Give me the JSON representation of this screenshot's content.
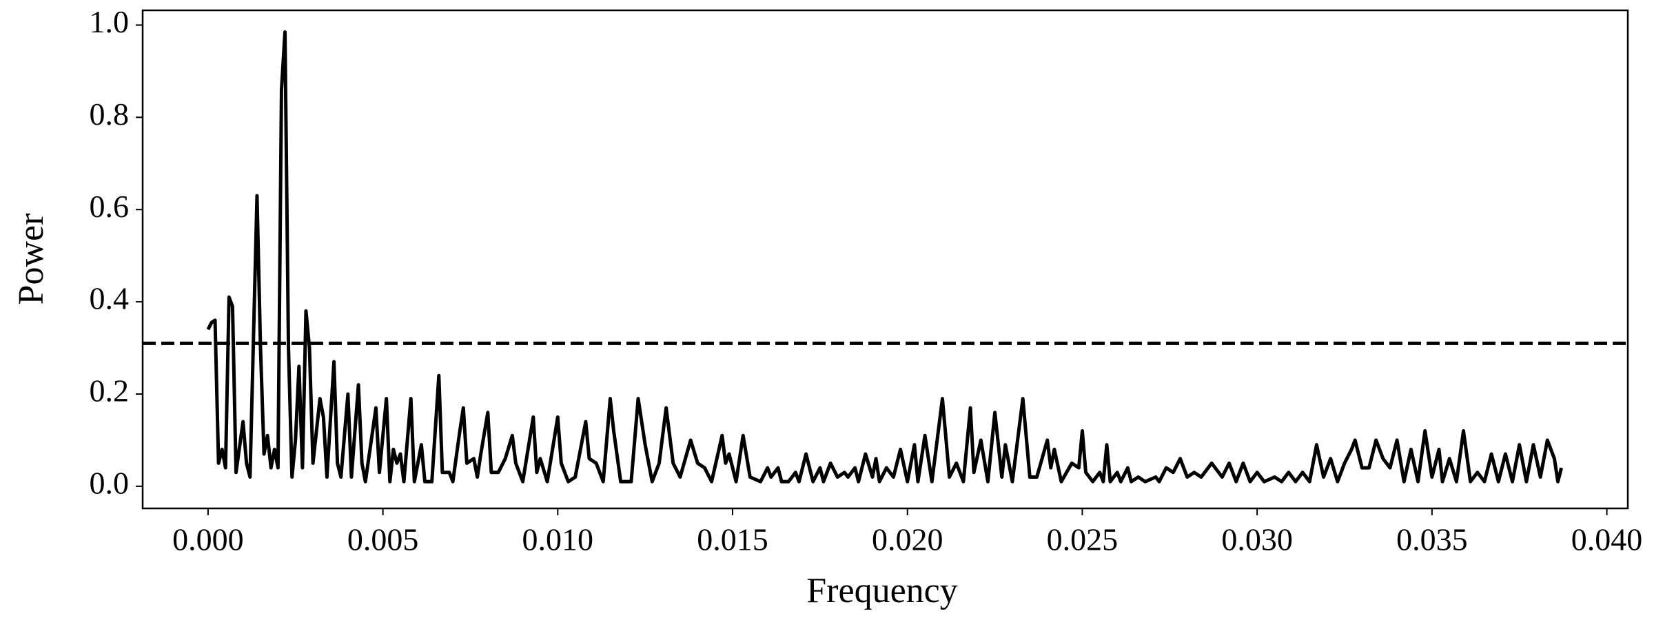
{
  "chart_data": {
    "type": "line",
    "xlabel": "Frequency",
    "ylabel": "Power",
    "x": [
      0,
      0.0001,
      0.0002,
      0.0003,
      0.0004,
      0.0005,
      0.0006,
      0.0007,
      0.0008,
      0.001,
      0.0011,
      0.0012,
      0.0014,
      0.0015,
      0.0016,
      0.0017,
      0.0018,
      0.0019,
      0.002,
      0.0021,
      0.0022,
      0.0023,
      0.0024,
      0.0025,
      0.0026,
      0.0027,
      0.0028,
      0.0029,
      0.003,
      0.0032,
      0.0033,
      0.0034,
      0.0036,
      0.0037,
      0.0038,
      0.004,
      0.0041,
      0.0043,
      0.0044,
      0.0045,
      0.0048,
      0.0049,
      0.0051,
      0.0052,
      0.0053,
      0.0054,
      0.0055,
      0.0056,
      0.0058,
      0.0059,
      0.0061,
      0.0062,
      0.0064,
      0.0066,
      0.0067,
      0.0069,
      0.007,
      0.0072,
      0.0073,
      0.0074,
      0.0076,
      0.0077,
      0.0078,
      0.008,
      0.0081,
      0.0083,
      0.0085,
      0.0087,
      0.0088,
      0.009,
      0.0093,
      0.0094,
      0.0095,
      0.0097,
      0.01,
      0.0101,
      0.0103,
      0.0105,
      0.0108,
      0.0109,
      0.0111,
      0.0113,
      0.0115,
      0.0116,
      0.0118,
      0.0121,
      0.0123,
      0.0125,
      0.0127,
      0.0129,
      0.0131,
      0.0133,
      0.0135,
      0.0138,
      0.014,
      0.0142,
      0.0144,
      0.0147,
      0.0148,
      0.0149,
      0.0151,
      0.0153,
      0.0155,
      0.0158,
      0.016,
      0.0161,
      0.0163,
      0.0164,
      0.0166,
      0.0168,
      0.0169,
      0.0171,
      0.0173,
      0.0175,
      0.0176,
      0.0178,
      0.018,
      0.0182,
      0.0183,
      0.0185,
      0.0186,
      0.0188,
      0.019,
      0.0191,
      0.0192,
      0.0194,
      0.0196,
      0.0198,
      0.02,
      0.0202,
      0.0203,
      0.0205,
      0.0207,
      0.021,
      0.0212,
      0.0214,
      0.0216,
      0.0218,
      0.0219,
      0.0221,
      0.0223,
      0.0225,
      0.0227,
      0.0228,
      0.023,
      0.0233,
      0.0235,
      0.0237,
      0.024,
      0.0241,
      0.0242,
      0.0244,
      0.0247,
      0.0249,
      0.025,
      0.0251,
      0.0253,
      0.0255,
      0.0256,
      0.0257,
      0.0258,
      0.026,
      0.0261,
      0.0263,
      0.0264,
      0.0266,
      0.0268,
      0.0271,
      0.0272,
      0.0274,
      0.0276,
      0.0278,
      0.028,
      0.0282,
      0.0284,
      0.0287,
      0.029,
      0.0292,
      0.0294,
      0.0296,
      0.0298,
      0.03,
      0.0302,
      0.0305,
      0.0307,
      0.0309,
      0.0311,
      0.0313,
      0.0315,
      0.0317,
      0.0319,
      0.0321,
      0.0323,
      0.0325,
      0.0327,
      0.0328,
      0.033,
      0.0332,
      0.0334,
      0.0336,
      0.0338,
      0.034,
      0.0342,
      0.0344,
      0.0346,
      0.0348,
      0.035,
      0.0352,
      0.0353,
      0.0355,
      0.0357,
      0.0359,
      0.0361,
      0.0363,
      0.0365,
      0.0367,
      0.0369,
      0.0371,
      0.0373,
      0.0375,
      0.0377,
      0.0379,
      0.0381,
      0.0383,
      0.0385,
      0.0386,
      0.0387
    ],
    "values": [
      0.34,
      0.355,
      0.36,
      0.05,
      0.08,
      0.04,
      0.41,
      0.39,
      0.03,
      0.14,
      0.05,
      0.02,
      0.63,
      0.3,
      0.07,
      0.11,
      0.04,
      0.08,
      0.04,
      0.86,
      0.985,
      0.3,
      0.02,
      0.1,
      0.26,
      0.04,
      0.38,
      0.3,
      0.05,
      0.19,
      0.15,
      0.02,
      0.27,
      0.05,
      0.02,
      0.2,
      0.02,
      0.22,
      0.05,
      0.01,
      0.17,
      0.03,
      0.19,
      0.01,
      0.08,
      0.05,
      0.07,
      0.01,
      0.19,
      0.01,
      0.09,
      0.01,
      0.01,
      0.24,
      0.03,
      0.03,
      0.01,
      0.12,
      0.17,
      0.05,
      0.06,
      0.02,
      0.07,
      0.16,
      0.03,
      0.03,
      0.06,
      0.11,
      0.05,
      0.01,
      0.15,
      0.03,
      0.06,
      0.01,
      0.15,
      0.05,
      0.01,
      0.02,
      0.14,
      0.06,
      0.05,
      0.01,
      0.19,
      0.12,
      0.01,
      0.01,
      0.19,
      0.09,
      0.01,
      0.05,
      0.17,
      0.05,
      0.02,
      0.1,
      0.05,
      0.04,
      0.01,
      0.11,
      0.05,
      0.07,
      0.01,
      0.11,
      0.02,
      0.01,
      0.04,
      0.02,
      0.04,
      0.01,
      0.01,
      0.03,
      0.01,
      0.07,
      0.01,
      0.04,
      0.01,
      0.05,
      0.02,
      0.03,
      0.02,
      0.04,
      0.01,
      0.07,
      0.02,
      0.06,
      0.01,
      0.04,
      0.02,
      0.08,
      0.01,
      0.09,
      0.01,
      0.11,
      0.01,
      0.19,
      0.02,
      0.05,
      0.01,
      0.17,
      0.03,
      0.1,
      0.01,
      0.16,
      0.02,
      0.09,
      0.01,
      0.19,
      0.02,
      0.02,
      0.1,
      0.04,
      0.08,
      0.01,
      0.05,
      0.04,
      0.12,
      0.03,
      0.01,
      0.03,
      0.01,
      0.09,
      0.01,
      0.03,
      0.01,
      0.04,
      0.01,
      0.02,
      0.01,
      0.02,
      0.01,
      0.04,
      0.03,
      0.06,
      0.02,
      0.03,
      0.02,
      0.05,
      0.02,
      0.05,
      0.01,
      0.05,
      0.01,
      0.03,
      0.01,
      0.02,
      0.01,
      0.03,
      0.01,
      0.03,
      0.01,
      0.09,
      0.02,
      0.06,
      0.01,
      0.05,
      0.08,
      0.1,
      0.04,
      0.04,
      0.1,
      0.06,
      0.04,
      0.1,
      0.01,
      0.08,
      0.01,
      0.12,
      0.02,
      0.08,
      0.01,
      0.06,
      0.01,
      0.12,
      0.01,
      0.03,
      0.01,
      0.07,
      0.01,
      0.07,
      0.01,
      0.09,
      0.01,
      0.09,
      0.02,
      0.1,
      0.06,
      0.01,
      0.04
    ],
    "color": "#000000",
    "hline": {
      "value": 0.31,
      "style": "dashed",
      "color": "#000000"
    },
    "xlim": [
      -0.00187,
      0.0406
    ],
    "ylim": [
      -0.048,
      1.032
    ],
    "xticks": [
      {
        "value": 0,
        "label": "0.000"
      },
      {
        "value": 0.005,
        "label": "0.005"
      },
      {
        "value": 0.01,
        "label": "0.010"
      },
      {
        "value": 0.015,
        "label": "0.015"
      },
      {
        "value": 0.02,
        "label": "0.020"
      },
      {
        "value": 0.025,
        "label": "0.025"
      },
      {
        "value": 0.03,
        "label": "0.030"
      },
      {
        "value": 0.035,
        "label": "0.035"
      },
      {
        "value": 0.04,
        "label": "0.040"
      }
    ],
    "yticks": [
      {
        "value": 0,
        "label": "0.0"
      },
      {
        "value": 0.2,
        "label": "0.2"
      },
      {
        "value": 0.4,
        "label": "0.4"
      },
      {
        "value": 0.6,
        "label": "0.6"
      },
      {
        "value": 0.8,
        "label": "0.8"
      },
      {
        "value": 1,
        "label": "1.0"
      }
    ],
    "grid": false
  }
}
